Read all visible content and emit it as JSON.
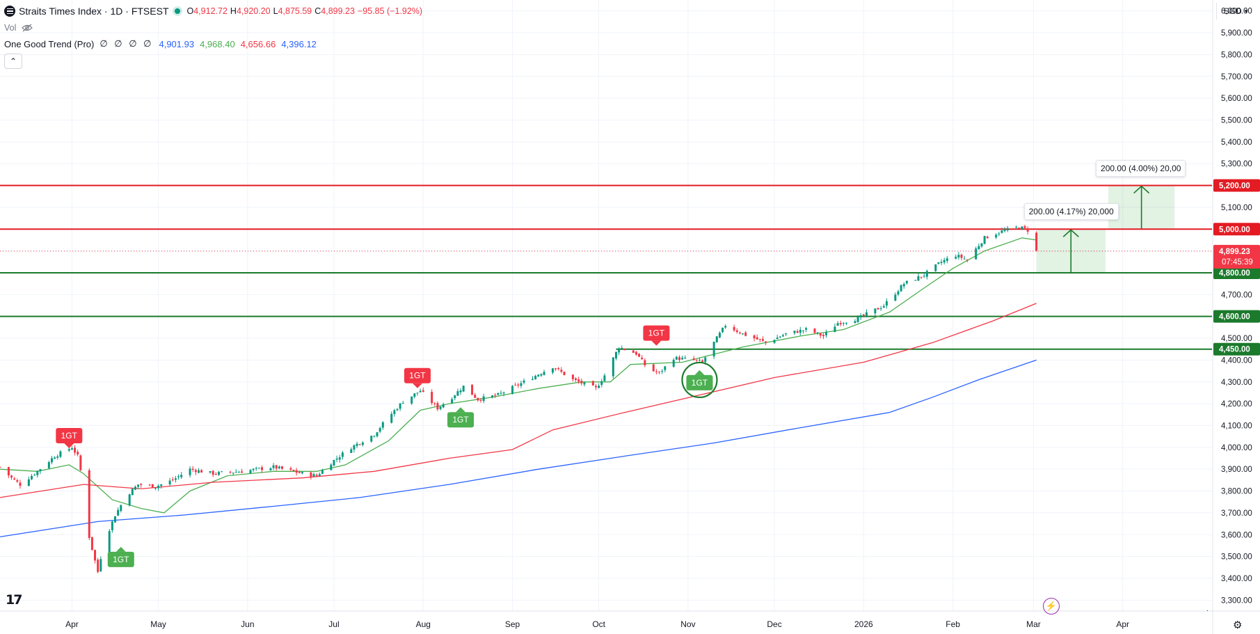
{
  "header": {
    "title": "Straits Times Index · 1D · FTSEST",
    "open_label": "O",
    "open": "4,912.72",
    "high_label": "H",
    "high": "4,920.20",
    "low_label": "L",
    "low": "4,875.59",
    "close_label": "C",
    "close": "4,899.23",
    "change": "−95.85 (−1.92%)",
    "vol_label": "Vol",
    "indicator_name": "One Good Trend (Pro)",
    "indicator_slots": "∅ ∅ ∅ ∅",
    "ind_v1": "4,901.93",
    "ind_v2": "4,968.40",
    "ind_v3": "4,656.66",
    "ind_v4": "4,396.12",
    "collapse_glyph": "⌃",
    "currency": "SGD"
  },
  "colors": {
    "up": "#089981",
    "down": "#f23645",
    "fast_ma": "#4caf50",
    "mid_ma": "#f23645",
    "slow_ma": "#2962ff",
    "support": "#1b7a2c",
    "resistance": "#e31b23",
    "grid": "#f0f3fa",
    "axis_text": "#131722",
    "signal_buy": "#4caf50",
    "signal_sell": "#f23645"
  },
  "footer": {
    "bolt_icon": "⚡",
    "gear_icon": "⚙",
    "dot": "."
  },
  "chart_data": {
    "type": "candlestick",
    "y_range": [
      3250,
      6050
    ],
    "y_ticks": [
      3300,
      3400,
      3500,
      3600,
      3700,
      3800,
      3900,
      4000,
      4100,
      4200,
      4300,
      4400,
      4500,
      4600,
      4700,
      4800,
      4900,
      5000,
      5100,
      5200,
      5300,
      5400,
      5500,
      5600,
      5700,
      5800,
      5900,
      6000
    ],
    "y_tick_labels": [
      "3,300.00",
      "3,400.00",
      "3,500.00",
      "3,600.00",
      "3,700.00",
      "3,800.00",
      "3,900.00",
      "4,000.00",
      "4,100.00",
      "4,200.00",
      "4,300.00",
      "4,400.00",
      "4,500.00",
      "4,600.00",
      "4,700.00",
      "4,800.00",
      "4,900.00",
      "5,000.00",
      "5,100.00",
      "5,200.00",
      "5,300.00",
      "5,400.00",
      "5,500.00",
      "5,600.00",
      "5,700.00",
      "5,800.00",
      "5,900.00",
      "6,000.00"
    ],
    "x_range": [
      "2025-03-07",
      "2026-05-02"
    ],
    "x_ticks": [
      {
        "date": "2025-04-01",
        "label": "Apr"
      },
      {
        "date": "2025-05-01",
        "label": "May"
      },
      {
        "date": "2025-06-01",
        "label": "Jun"
      },
      {
        "date": "2025-07-01",
        "label": "Jul"
      },
      {
        "date": "2025-08-01",
        "label": "Aug"
      },
      {
        "date": "2025-09-01",
        "label": "Sep"
      },
      {
        "date": "2025-10-01",
        "label": "Oct"
      },
      {
        "date": "2025-11-01",
        "label": "Nov"
      },
      {
        "date": "2025-12-01",
        "label": "Dec"
      },
      {
        "date": "2026-01-01",
        "label": "2026"
      },
      {
        "date": "2026-02-01",
        "label": "Feb"
      },
      {
        "date": "2026-03-01",
        "label": "Mar"
      },
      {
        "date": "2026-04-01",
        "label": "Apr"
      }
    ],
    "last_price": {
      "value": 4899.23,
      "label": "4,899.23",
      "countdown": "07:45:39"
    },
    "horizontal_lines": [
      {
        "value": 5200,
        "label": "5,200.00",
        "kind": "resistance"
      },
      {
        "value": 5000,
        "label": "5,000.00",
        "kind": "resistance"
      },
      {
        "value": 4800,
        "label": "4,800.00",
        "kind": "support"
      },
      {
        "value": 4600,
        "label": "4,600.00",
        "kind": "support"
      },
      {
        "value": 4450,
        "label": "4,450.00",
        "kind": "support",
        "from": "2025-10-07"
      }
    ],
    "measure_boxes": [
      {
        "date_from": "2026-03-02",
        "date_to": "2026-03-26",
        "low": 4800,
        "high": 5000,
        "label": "200.00 (4.17%) 20,000"
      },
      {
        "date_from": "2026-03-27",
        "date_to": "2026-04-19",
        "low": 5000,
        "high": 5200,
        "label": "200.00 (4.00%) 20,00"
      }
    ],
    "signals": [
      {
        "date": "2025-03-31",
        "value": 3990,
        "label": "1GT",
        "kind": "sell"
      },
      {
        "date": "2025-04-18",
        "value": 3550,
        "label": "1GT",
        "kind": "buy"
      },
      {
        "date": "2025-07-30",
        "value": 4265,
        "label": "1GT",
        "kind": "sell"
      },
      {
        "date": "2025-08-14",
        "value": 4190,
        "label": "1GT",
        "kind": "buy"
      },
      {
        "date": "2025-10-21",
        "value": 4460,
        "label": "1GT",
        "kind": "sell"
      },
      {
        "date": "2025-11-05",
        "value": 4360,
        "label": "1GT",
        "kind": "buy",
        "circled": true
      }
    ],
    "series": [
      {
        "name": "close",
        "anchors": [
          [
            "2025-03-07",
            3910
          ],
          [
            "2025-03-11",
            3860
          ],
          [
            "2025-03-14",
            3830
          ],
          [
            "2025-03-19",
            3880
          ],
          [
            "2025-03-26",
            3960
          ],
          [
            "2025-04-01",
            4000
          ],
          [
            "2025-04-03",
            3960
          ],
          [
            "2025-04-05",
            3830
          ],
          [
            "2025-04-07",
            3590
          ],
          [
            "2025-04-09",
            3480
          ],
          [
            "2025-04-10",
            3430
          ],
          [
            "2025-04-12",
            3560
          ],
          [
            "2025-04-16",
            3690
          ],
          [
            "2025-04-20",
            3780
          ],
          [
            "2025-04-24",
            3830
          ],
          [
            "2025-04-30",
            3820
          ],
          [
            "2025-05-06",
            3850
          ],
          [
            "2025-05-12",
            3900
          ],
          [
            "2025-05-20",
            3880
          ],
          [
            "2025-05-30",
            3890
          ],
          [
            "2025-06-10",
            3910
          ],
          [
            "2025-06-20",
            3880
          ],
          [
            "2025-06-25",
            3870
          ],
          [
            "2025-06-30",
            3930
          ],
          [
            "2025-07-07",
            4000
          ],
          [
            "2025-07-15",
            4060
          ],
          [
            "2025-07-20",
            4140
          ],
          [
            "2025-07-25",
            4210
          ],
          [
            "2025-07-31",
            4260
          ],
          [
            "2025-08-06",
            4180
          ],
          [
            "2025-08-11",
            4230
          ],
          [
            "2025-08-15",
            4280
          ],
          [
            "2025-08-20",
            4220
          ],
          [
            "2025-08-27",
            4240
          ],
          [
            "2025-09-05",
            4300
          ],
          [
            "2025-09-15",
            4370
          ],
          [
            "2025-09-22",
            4310
          ],
          [
            "2025-09-30",
            4270
          ],
          [
            "2025-10-03",
            4330
          ],
          [
            "2025-10-08",
            4460
          ],
          [
            "2025-10-14",
            4430
          ],
          [
            "2025-10-18",
            4360
          ],
          [
            "2025-10-22",
            4340
          ],
          [
            "2025-10-27",
            4410
          ],
          [
            "2025-11-03",
            4400
          ],
          [
            "2025-11-06",
            4390
          ],
          [
            "2025-11-10",
            4480
          ],
          [
            "2025-11-14",
            4560
          ],
          [
            "2025-11-20",
            4520
          ],
          [
            "2025-11-28",
            4480
          ],
          [
            "2025-12-05",
            4520
          ],
          [
            "2025-12-12",
            4540
          ],
          [
            "2025-12-18",
            4510
          ],
          [
            "2025-12-23",
            4570
          ],
          [
            "2025-12-30",
            4590
          ],
          [
            "2026-01-08",
            4650
          ],
          [
            "2026-01-15",
            4750
          ],
          [
            "2026-01-22",
            4790
          ],
          [
            "2026-01-28",
            4850
          ],
          [
            "2026-02-02",
            4880
          ],
          [
            "2026-02-06",
            4860
          ],
          [
            "2026-02-12",
            4960
          ],
          [
            "2026-02-18",
            4990
          ],
          [
            "2026-02-24",
            5010
          ],
          [
            "2026-02-27",
            4995
          ],
          [
            "2026-03-02",
            4899
          ]
        ]
      },
      {
        "name": "fast",
        "anchors": [
          [
            "2025-03-07",
            3900
          ],
          [
            "2025-03-20",
            3890
          ],
          [
            "2025-03-31",
            3920
          ],
          [
            "2025-04-05",
            3880
          ],
          [
            "2025-04-15",
            3760
          ],
          [
            "2025-04-25",
            3720
          ],
          [
            "2025-05-03",
            3700
          ],
          [
            "2025-05-12",
            3800
          ],
          [
            "2025-05-25",
            3870
          ],
          [
            "2025-06-10",
            3890
          ],
          [
            "2025-06-25",
            3890
          ],
          [
            "2025-07-05",
            3920
          ],
          [
            "2025-07-20",
            4030
          ],
          [
            "2025-07-31",
            4170
          ],
          [
            "2025-08-10",
            4200
          ],
          [
            "2025-08-25",
            4230
          ],
          [
            "2025-09-10",
            4270
          ],
          [
            "2025-09-25",
            4300
          ],
          [
            "2025-10-05",
            4300
          ],
          [
            "2025-10-12",
            4380
          ],
          [
            "2025-10-30",
            4390
          ],
          [
            "2025-11-08",
            4420
          ],
          [
            "2025-11-20",
            4460
          ],
          [
            "2025-12-10",
            4510
          ],
          [
            "2025-12-25",
            4540
          ],
          [
            "2026-01-10",
            4620
          ],
          [
            "2026-01-22",
            4730
          ],
          [
            "2026-02-01",
            4820
          ],
          [
            "2026-02-12",
            4900
          ],
          [
            "2026-02-25",
            4960
          ],
          [
            "2026-03-02",
            4950
          ]
        ]
      },
      {
        "name": "mid",
        "anchors": [
          [
            "2025-03-07",
            3770
          ],
          [
            "2025-04-05",
            3830
          ],
          [
            "2025-04-25",
            3810
          ],
          [
            "2025-05-20",
            3840
          ],
          [
            "2025-06-20",
            3860
          ],
          [
            "2025-07-15",
            3890
          ],
          [
            "2025-08-10",
            3950
          ],
          [
            "2025-09-01",
            3990
          ],
          [
            "2025-09-15",
            4080
          ],
          [
            "2025-10-10",
            4160
          ],
          [
            "2025-11-05",
            4240
          ],
          [
            "2025-12-01",
            4320
          ],
          [
            "2026-01-01",
            4390
          ],
          [
            "2026-01-25",
            4480
          ],
          [
            "2026-02-15",
            4580
          ],
          [
            "2026-03-02",
            4660
          ]
        ]
      },
      {
        "name": "slow",
        "anchors": [
          [
            "2025-03-07",
            3590
          ],
          [
            "2025-04-10",
            3660
          ],
          [
            "2025-05-10",
            3690
          ],
          [
            "2025-06-10",
            3730
          ],
          [
            "2025-07-10",
            3770
          ],
          [
            "2025-08-10",
            3830
          ],
          [
            "2025-09-10",
            3900
          ],
          [
            "2025-10-10",
            3960
          ],
          [
            "2025-11-10",
            4020
          ],
          [
            "2025-12-10",
            4090
          ],
          [
            "2026-01-10",
            4160
          ],
          [
            "2026-01-25",
            4230
          ],
          [
            "2026-02-10",
            4310
          ],
          [
            "2026-03-02",
            4400
          ]
        ]
      }
    ]
  }
}
